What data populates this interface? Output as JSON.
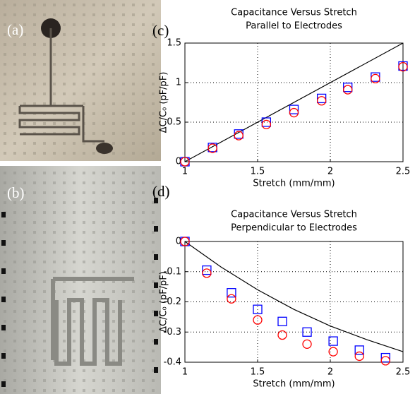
{
  "panel_labels": [
    "(a)",
    "(b)",
    "(c)",
    "(d)"
  ],
  "chart_data": [
    {
      "type": "scatter",
      "title": "Capacitance Versus Stretch",
      "subtitle": "Parallel to Electrodes",
      "xlabel": "Stretch (mm/mm)",
      "ylabel": "ΔC/C₀ (pF/pF)",
      "xlim": [
        1,
        2.5
      ],
      "ylim": [
        0,
        1.5
      ],
      "xticks": [
        1,
        1.5,
        2,
        2.5
      ],
      "yticks": [
        0,
        0.5,
        1,
        1.5
      ],
      "grid": true,
      "series": [
        {
          "marker": "line",
          "color": "#000000",
          "x": [
            1,
            2.5
          ],
          "values": [
            0,
            1.5
          ]
        },
        {
          "marker": "square",
          "color": "#0000ff",
          "x": [
            1,
            1.19,
            1.37,
            1.56,
            1.75,
            1.94,
            2.12,
            2.31,
            2.5
          ],
          "values": [
            0,
            0.18,
            0.35,
            0.5,
            0.66,
            0.8,
            0.94,
            1.07,
            1.21
          ]
        },
        {
          "marker": "circle",
          "color": "#ff0000",
          "x": [
            1,
            1.19,
            1.37,
            1.56,
            1.75,
            1.94,
            2.12,
            2.31,
            2.5
          ],
          "values": [
            0,
            0.17,
            0.33,
            0.47,
            0.62,
            0.77,
            0.91,
            1.05,
            1.2
          ]
        }
      ]
    },
    {
      "type": "scatter",
      "title": "Capacitance Versus Stretch",
      "subtitle": "Perpendicular to Electrodes",
      "xlabel": "Stretch (mm/mm)",
      "ylabel": "ΔC/C₀ (pF/pF)",
      "xlim": [
        1,
        2.5
      ],
      "ylim": [
        -0.4,
        0
      ],
      "xticks": [
        1,
        1.5,
        2,
        2.5
      ],
      "yticks": [
        0,
        -0.1,
        -0.2,
        -0.3,
        -0.4
      ],
      "grid": true,
      "series": [
        {
          "marker": "line",
          "color": "#000000",
          "x": [
            1,
            1.25,
            1.5,
            1.75,
            2,
            2.25,
            2.5
          ],
          "values": [
            0,
            -0.085,
            -0.16,
            -0.225,
            -0.28,
            -0.325,
            -0.365
          ]
        },
        {
          "marker": "square",
          "color": "#0000ff",
          "x": [
            1,
            1.15,
            1.32,
            1.5,
            1.67,
            1.84,
            2.02,
            2.2,
            2.38
          ],
          "values": [
            0,
            -0.095,
            -0.17,
            -0.225,
            -0.265,
            -0.3,
            -0.33,
            -0.36,
            -0.385
          ]
        },
        {
          "marker": "circle",
          "color": "#ff0000",
          "x": [
            1,
            1.15,
            1.32,
            1.5,
            1.67,
            1.84,
            2.02,
            2.2,
            2.38
          ],
          "values": [
            0,
            -0.105,
            -0.19,
            -0.26,
            -0.31,
            -0.34,
            -0.365,
            -0.38,
            -0.395
          ]
        }
      ]
    }
  ]
}
